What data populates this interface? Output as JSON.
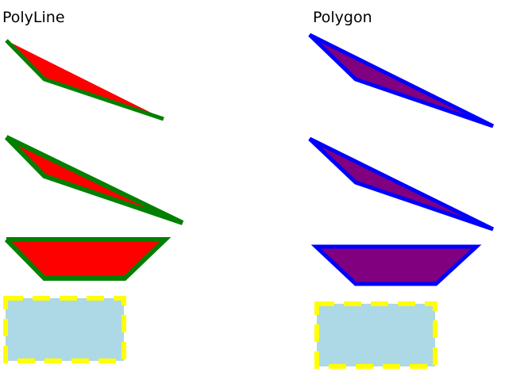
{
  "headings": {
    "left": "PolyLine",
    "right": "Polygon"
  },
  "colors": {
    "polyline_fill": "#ff0000",
    "polyline_stroke": "#008000",
    "polygon_fill": "#800080",
    "polygon_stroke": "#0000ff",
    "rect_fill": "#add8e6",
    "rect_stroke": "#ffff00"
  }
}
